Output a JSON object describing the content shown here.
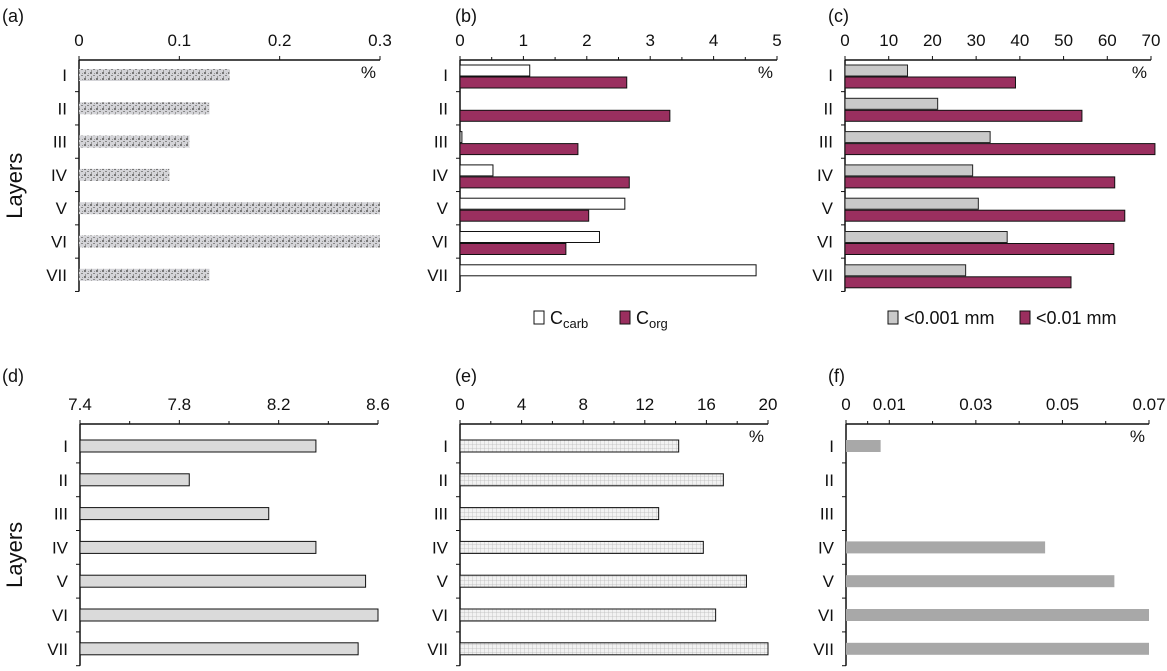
{
  "colors": {
    "purple": "#9a2f5f",
    "gray_c": "#c9c9c9",
    "gray_d": "#dadada",
    "gray_f": "#a8a8a8",
    "speckle": "#b8b8bc",
    "grid_fill": "#eeeeee"
  },
  "chart_data": [
    {
      "panel": "(a)",
      "type": "bar",
      "orientation": "horizontal",
      "ylabel": "Layers",
      "unit": "%",
      "categories": [
        "I",
        "II",
        "III",
        "IV",
        "V",
        "VI",
        "VII"
      ],
      "xlim": [
        0,
        0.3
      ],
      "ticks": [
        "0",
        "0.1",
        "0.2",
        "0.3"
      ],
      "tick_values": [
        0,
        0.1,
        0.2,
        0.3
      ],
      "series": [
        {
          "values": [
            0.15,
            0.13,
            0.11,
            0.09,
            0.3,
            0.3,
            0.13
          ],
          "style": "speckled"
        }
      ]
    },
    {
      "panel": "(b)",
      "type": "bar",
      "orientation": "horizontal",
      "unit": "%",
      "categories": [
        "I",
        "II",
        "III",
        "IV",
        "V",
        "VI",
        "VII"
      ],
      "xlim": [
        0,
        5
      ],
      "ticks": [
        "0",
        "1",
        "2",
        "3",
        "4",
        "5"
      ],
      "tick_values": [
        0,
        1,
        2,
        3,
        4,
        5
      ],
      "legend": "bottom",
      "series": [
        {
          "name": "C",
          "sub": "carb",
          "values": [
            1.1,
            0,
            0.03,
            0.52,
            2.6,
            2.2,
            4.67
          ],
          "style": "white"
        },
        {
          "name": "C",
          "sub": "org",
          "values": [
            2.63,
            3.31,
            1.86,
            2.67,
            2.03,
            1.67,
            null
          ],
          "style": "purple"
        }
      ]
    },
    {
      "panel": "(c)",
      "type": "bar",
      "orientation": "horizontal",
      "unit": "%",
      "categories": [
        "I",
        "II",
        "III",
        "IV",
        "V",
        "VI",
        "VII"
      ],
      "xlim": [
        0,
        70
      ],
      "ticks": [
        "0",
        "10",
        "20",
        "30",
        "40",
        "50",
        "60",
        "70"
      ],
      "tick_values": [
        0,
        10,
        20,
        30,
        40,
        50,
        60,
        70
      ],
      "legend": "bottom",
      "series": [
        {
          "name": "<0.001 mm",
          "values": [
            14.3,
            21.2,
            33.2,
            29.2,
            30.5,
            37.1,
            27.6
          ],
          "style": "gray"
        },
        {
          "name": "<0.01 mm",
          "values": [
            39,
            54.2,
            70.9,
            61.7,
            64,
            61.5,
            51.7
          ],
          "style": "purple"
        }
      ]
    },
    {
      "panel": "(d)",
      "type": "bar",
      "orientation": "horizontal",
      "ylabel": "Layers",
      "categories": [
        "I",
        "II",
        "III",
        "IV",
        "V",
        "VI",
        "VII"
      ],
      "xlim": [
        7.4,
        8.6
      ],
      "ticks": [
        "7.4",
        "7.8",
        "8.2",
        "8.6"
      ],
      "tick_values": [
        7.4,
        7.8,
        8.2,
        8.6
      ],
      "series": [
        {
          "values": [
            8.35,
            7.84,
            8.16,
            8.35,
            8.55,
            8.6,
            8.52
          ],
          "style": "lightgray"
        }
      ]
    },
    {
      "panel": "(e)",
      "type": "bar",
      "orientation": "horizontal",
      "unit": "%",
      "categories": [
        "I",
        "II",
        "III",
        "IV",
        "V",
        "VI",
        "VII"
      ],
      "xlim": [
        0,
        20
      ],
      "ticks": [
        "0",
        "4",
        "8",
        "12",
        "16",
        "20"
      ],
      "tick_values": [
        0,
        4,
        8,
        12,
        16,
        20
      ],
      "series": [
        {
          "values": [
            14.2,
            17.1,
            12.9,
            15.8,
            18.6,
            16.6,
            20
          ],
          "style": "grid"
        }
      ]
    },
    {
      "panel": "(f)",
      "type": "bar",
      "orientation": "horizontal",
      "unit": "%",
      "categories": [
        "I",
        "II",
        "III",
        "IV",
        "V",
        "VI",
        "VII"
      ],
      "xlim": [
        0,
        0.07
      ],
      "ticks": [
        "0",
        "0.01",
        "0.03",
        "0.05",
        "0.07"
      ],
      "tick_values": [
        0,
        0.01,
        0.03,
        0.05,
        0.07
      ],
      "series": [
        {
          "values": [
            0.008,
            0,
            0,
            0.046,
            0.062,
            0.07,
            0.07
          ],
          "style": "flatgray"
        }
      ]
    }
  ]
}
